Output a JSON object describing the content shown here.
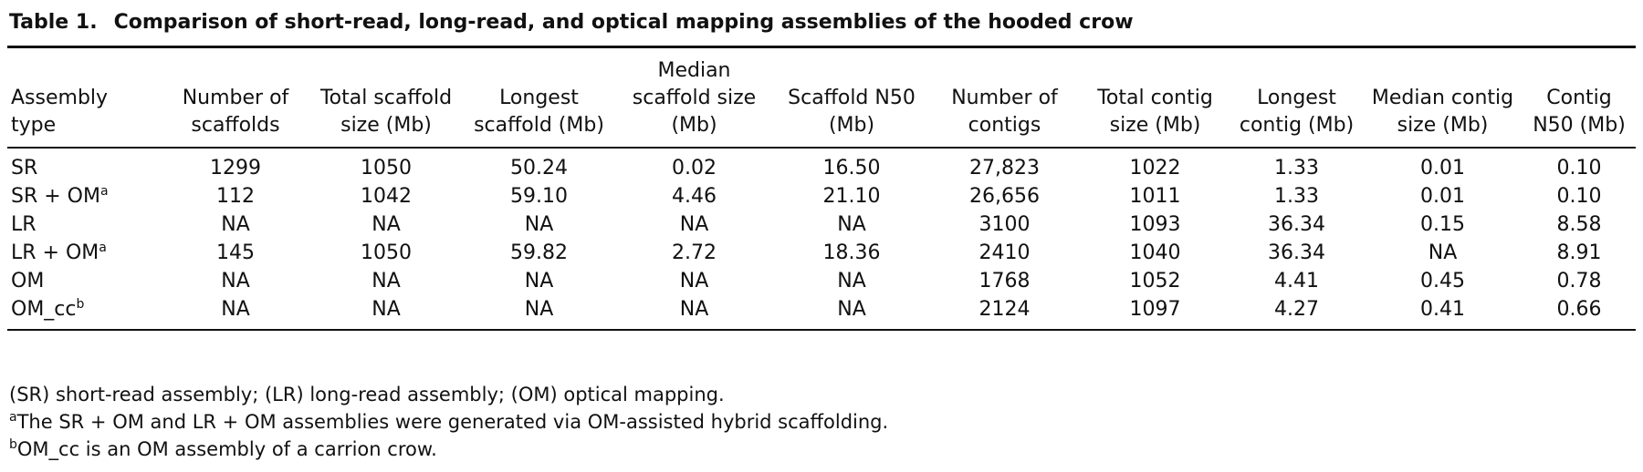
{
  "title": {
    "label": "Table 1.",
    "text": "Comparison of short-read, long-read, and optical mapping assemblies of the hooded crow"
  },
  "table": {
    "header": [
      "Assembly type",
      "Number of scaffolds",
      "Total scaffold size (Mb)",
      "Longest scaffold (Mb)",
      "Median scaffold size (Mb)",
      "Scaffold N50 (Mb)",
      "Number of contigs",
      "Total contig size (Mb)",
      "Longest contig (Mb)",
      "Median contig size (Mb)",
      "Contig N50 (Mb)"
    ],
    "rows": [
      [
        {
          "text": "SR"
        },
        "1299",
        "1050",
        "50.24",
        "0.02",
        "16.50",
        "27,823",
        "1022",
        "1.33",
        "0.01",
        "0.10"
      ],
      [
        {
          "text": "SR + OM",
          "note": "a"
        },
        "112",
        "1042",
        "59.10",
        "4.46",
        "21.10",
        "26,656",
        "1011",
        "1.33",
        "0.01",
        "0.10"
      ],
      [
        {
          "text": "LR"
        },
        "NA",
        "NA",
        "NA",
        "NA",
        "NA",
        "3100",
        "1093",
        "36.34",
        "0.15",
        "8.58"
      ],
      [
        {
          "text": "LR + OM",
          "note": "a"
        },
        "145",
        "1050",
        "59.82",
        "2.72",
        "18.36",
        "2410",
        "1040",
        "36.34",
        "NA",
        "8.91"
      ],
      [
        {
          "text": "OM"
        },
        "NA",
        "NA",
        "NA",
        "NA",
        "NA",
        "1768",
        "1052",
        "4.41",
        "0.45",
        "0.78"
      ],
      [
        {
          "text": "OM_cc",
          "note": "b"
        },
        "NA",
        "NA",
        "NA",
        "NA",
        "NA",
        "2124",
        "1097",
        "4.27",
        "0.41",
        "0.66"
      ]
    ]
  },
  "notes": [
    {
      "text": "(SR) short-read assembly; (LR) long-read assembly; (OM) optical mapping."
    },
    {
      "mark": "a",
      "text": "The SR + OM and LR + OM assemblies were generated via OM-assisted hybrid scaffolding."
    },
    {
      "mark": "b",
      "text": "OM_cc is an OM assembly of a carrion crow."
    }
  ]
}
